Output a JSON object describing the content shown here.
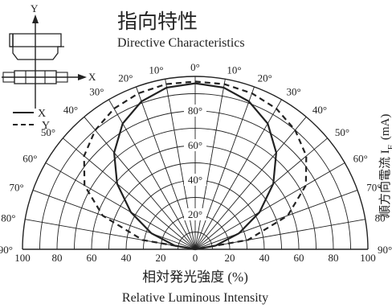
{
  "title_jp": "指向特性",
  "title_en": "Directive Characteristics",
  "side_label": {
    "main": "順方向電流 I",
    "sub": "F",
    "unit": "(mA)"
  },
  "diagram": {
    "y_axis_label": "Y",
    "x_axis_label": "X"
  },
  "legend": [
    {
      "name": "X",
      "style": "solid"
    },
    {
      "name": "Y",
      "style": "dashed"
    }
  ],
  "chart_data": {
    "type": "polar",
    "xlabel_jp": "相対発光強度 (%)",
    "xlabel_en": "Relative Luminous Intensity",
    "angle_labels": [
      "0°",
      "10°",
      "20°",
      "30°",
      "40°",
      "50°",
      "60°",
      "70°",
      "80°",
      "90°"
    ],
    "angle_values": [
      0,
      10,
      20,
      30,
      40,
      50,
      60,
      70,
      80,
      90
    ],
    "radial_labels": [
      "20°",
      "40°",
      "60°",
      "80°"
    ],
    "radial_values": [
      20,
      40,
      60,
      80
    ],
    "bottom_ticks": [
      "100",
      "80",
      "60",
      "40",
      "20",
      "0",
      "20",
      "40",
      "60",
      "80",
      "100"
    ],
    "rlim": [
      0,
      100
    ],
    "angle_range": [
      -90,
      90
    ],
    "series": [
      {
        "name": "X",
        "style": "solid",
        "angles": [
          0,
          10,
          20,
          30,
          40,
          50,
          60,
          70,
          80,
          90
        ],
        "values": [
          96,
          95,
          91,
          84,
          73,
          59,
          43,
          27,
          12,
          0
        ]
      },
      {
        "name": "Y",
        "style": "dashed",
        "angles": [
          0,
          10,
          20,
          30,
          40,
          50,
          60,
          70,
          80,
          90
        ],
        "values": [
          97,
          97,
          96,
          94,
          90,
          84,
          74,
          57,
          31,
          0
        ]
      }
    ]
  }
}
